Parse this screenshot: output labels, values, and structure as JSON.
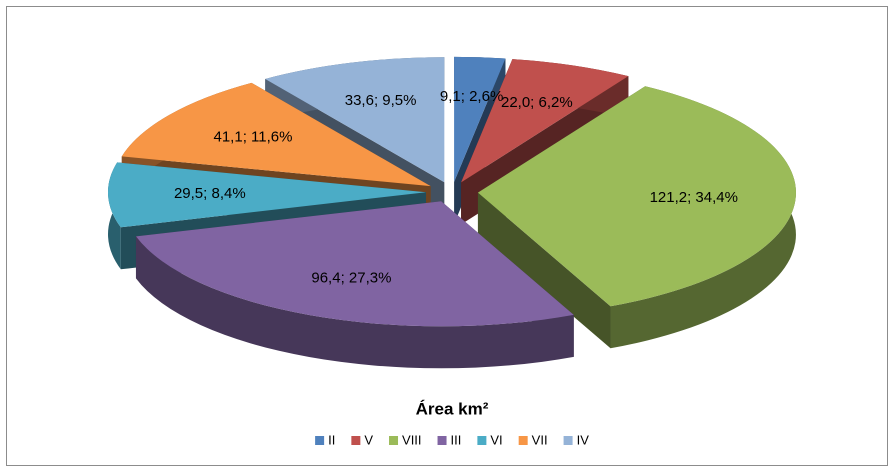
{
  "chart_data": {
    "type": "pie3d",
    "title": "Área km²",
    "categories": [
      "II",
      "V",
      "VIII",
      "III",
      "VI",
      "VII",
      "IV"
    ],
    "values": [
      9.1,
      22.0,
      121.2,
      96.4,
      29.5,
      41.1,
      33.6
    ],
    "value_labels": [
      "9,1; 2,6%",
      "22,0; 6,2%",
      "121,2; 34,4%",
      "96,4; 27,3%",
      "29,5; 8,4%",
      "41,1; 11,6%",
      "33,6; 9,5%"
    ],
    "colors": [
      "#4f81bd",
      "#c0504d",
      "#9bbb59",
      "#8064a2",
      "#4bacc6",
      "#f79646",
      "#95b3d7"
    ],
    "legend": "bottom"
  }
}
